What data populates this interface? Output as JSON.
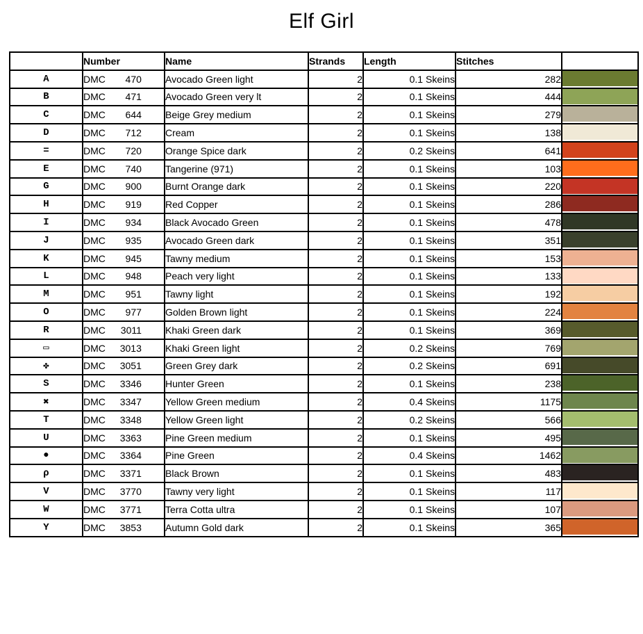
{
  "title": "Elf Girl",
  "table": {
    "headers": {
      "symbol": "",
      "number": "Number",
      "name": "Name",
      "strands": "Strands",
      "length": "Length",
      "stitches": "Stitches",
      "color": ""
    },
    "rows": [
      {
        "symbol": "A",
        "brand": "DMC",
        "number": "470",
        "name": "Avocado Green light",
        "strands": "2",
        "length": "0.1 Skeins",
        "stitches": "282",
        "color": "#6B7B31"
      },
      {
        "symbol": "B",
        "brand": "DMC",
        "number": "471",
        "name": "Avocado Green very lt",
        "strands": "2",
        "length": "0.1 Skeins",
        "stitches": "444",
        "color": "#8EA457"
      },
      {
        "symbol": "C",
        "brand": "DMC",
        "number": "644",
        "name": "Beige Grey medium",
        "strands": "2",
        "length": "0.1 Skeins",
        "stitches": "279",
        "color": "#B9B19A"
      },
      {
        "symbol": "D",
        "brand": "DMC",
        "number": "712",
        "name": "Cream",
        "strands": "2",
        "length": "0.1 Skeins",
        "stitches": "138",
        "color": "#F0E9D6"
      },
      {
        "symbol": "=",
        "brand": "DMC",
        "number": "720",
        "name": "Orange Spice dark",
        "strands": "2",
        "length": "0.2 Skeins",
        "stitches": "641",
        "color": "#D2431D"
      },
      {
        "symbol": "E",
        "brand": "DMC",
        "number": "740",
        "name": "Tangerine (971)",
        "strands": "2",
        "length": "0.1 Skeins",
        "stitches": "103",
        "color": "#FF6D1C"
      },
      {
        "symbol": "G",
        "brand": "DMC",
        "number": "900",
        "name": "Burnt Orange dark",
        "strands": "2",
        "length": "0.1 Skeins",
        "stitches": "220",
        "color": "#C43425"
      },
      {
        "symbol": "H",
        "brand": "DMC",
        "number": "919",
        "name": "Red Copper",
        "strands": "2",
        "length": "0.1 Skeins",
        "stitches": "286",
        "color": "#8E2A20"
      },
      {
        "symbol": "I",
        "brand": "DMC",
        "number": "934",
        "name": "Black Avocado Green",
        "strands": "2",
        "length": "0.1 Skeins",
        "stitches": "478",
        "color": "#313826"
      },
      {
        "symbol": "J",
        "brand": "DMC",
        "number": "935",
        "name": "Avocado Green dark",
        "strands": "2",
        "length": "0.1 Skeins",
        "stitches": "351",
        "color": "#3A402C"
      },
      {
        "symbol": "K",
        "brand": "DMC",
        "number": "945",
        "name": "Tawny medium",
        "strands": "2",
        "length": "0.1 Skeins",
        "stitches": "153",
        "color": "#EEB192"
      },
      {
        "symbol": "L",
        "brand": "DMC",
        "number": "948",
        "name": "Peach very light",
        "strands": "2",
        "length": "0.1 Skeins",
        "stitches": "133",
        "color": "#FFD9C4"
      },
      {
        "symbol": "M",
        "brand": "DMC",
        "number": "951",
        "name": "Tawny light",
        "strands": "2",
        "length": "0.1 Skeins",
        "stitches": "192",
        "color": "#F6CDA3"
      },
      {
        "symbol": "O",
        "brand": "DMC",
        "number": "977",
        "name": "Golden Brown light",
        "strands": "2",
        "length": "0.1 Skeins",
        "stitches": "224",
        "color": "#E28340"
      },
      {
        "symbol": "R",
        "brand": "DMC",
        "number": "3011",
        "name": "Khaki Green dark",
        "strands": "2",
        "length": "0.1 Skeins",
        "stitches": "369",
        "color": "#575B2C"
      },
      {
        "symbol": "▭",
        "brand": "DMC",
        "number": "3013",
        "name": "Khaki Green light",
        "strands": "2",
        "length": "0.2 Skeins",
        "stitches": "769",
        "color": "#A3A56E"
      },
      {
        "symbol": "✤",
        "brand": "DMC",
        "number": "3051",
        "name": "Green Grey dark",
        "strands": "2",
        "length": "0.2 Skeins",
        "stitches": "691",
        "color": "#464A29"
      },
      {
        "symbol": "S",
        "brand": "DMC",
        "number": "3346",
        "name": "Hunter Green",
        "strands": "2",
        "length": "0.1 Skeins",
        "stitches": "238",
        "color": "#4C6329"
      },
      {
        "symbol": "✖",
        "brand": "DMC",
        "number": "3347",
        "name": "Yellow Green medium",
        "strands": "2",
        "length": "0.4 Skeins",
        "stitches": "1175",
        "color": "#6E864D"
      },
      {
        "symbol": "T",
        "brand": "DMC",
        "number": "3348",
        "name": "Yellow Green light",
        "strands": "2",
        "length": "0.2 Skeins",
        "stitches": "566",
        "color": "#A4BD6E"
      },
      {
        "symbol": "U",
        "brand": "DMC",
        "number": "3363",
        "name": "Pine Green medium",
        "strands": "2",
        "length": "0.1 Skeins",
        "stitches": "495",
        "color": "#586949"
      },
      {
        "symbol": "●",
        "brand": "DMC",
        "number": "3364",
        "name": "Pine Green",
        "strands": "2",
        "length": "0.4 Skeins",
        "stitches": "1462",
        "color": "#889B61"
      },
      {
        "symbol": "ρ",
        "brand": "DMC",
        "number": "3371",
        "name": "Black Brown",
        "strands": "2",
        "length": "0.1 Skeins",
        "stitches": "483",
        "color": "#2A2321"
      },
      {
        "symbol": "V",
        "brand": "DMC",
        "number": "3770",
        "name": "Tawny very light",
        "strands": "2",
        "length": "0.1 Skeins",
        "stitches": "117",
        "color": "#FEE8CC"
      },
      {
        "symbol": "W",
        "brand": "DMC",
        "number": "3771",
        "name": "Terra Cotta ultra",
        "strands": "2",
        "length": "0.1 Skeins",
        "stitches": "107",
        "color": "#DB9A7F"
      },
      {
        "symbol": "Y",
        "brand": "DMC",
        "number": "3853",
        "name": "Autumn Gold dark",
        "strands": "2",
        "length": "0.1 Skeins",
        "stitches": "365",
        "color": "#D0642A"
      }
    ]
  }
}
